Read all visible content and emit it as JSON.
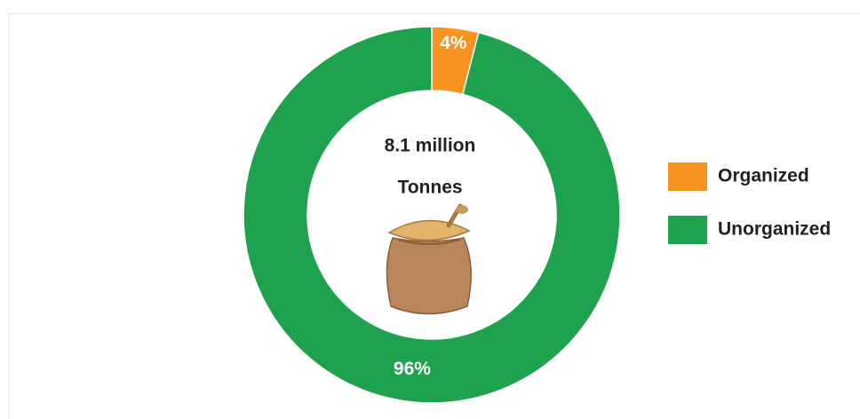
{
  "chart_data": {
    "type": "pie",
    "donut": true,
    "categories": [
      "Organized",
      "Unorganized"
    ],
    "values": [
      4,
      96
    ],
    "value_labels": [
      "4%",
      "96%"
    ],
    "colors": [
      "#f7931e",
      "#1ea24e"
    ],
    "center_text": [
      "8.1 million",
      "Tonnes"
    ],
    "legend": "right"
  }
}
